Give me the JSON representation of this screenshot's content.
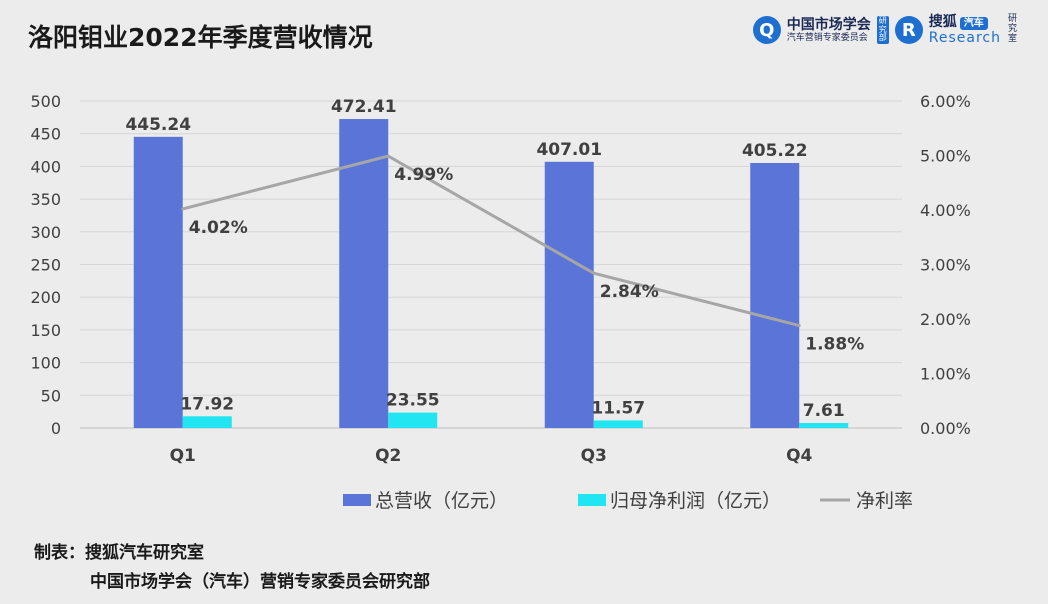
{
  "title": "洛阳钼业2022年季度营收情况",
  "logo": {
    "org1_line1": "中国市场学会",
    "org1_line2": "汽车营销专家委员会",
    "org1_vertical": "研究部",
    "org2_name": "搜狐",
    "org2_badge": "汽车",
    "org2_research": "Research",
    "org2_vertical": "研究室"
  },
  "footer": {
    "line1": "制表：搜狐汽车研究室",
    "line2": "中国市场学会（汽车）营销专家委员会研究部"
  },
  "chart_data": {
    "type": "bar",
    "categories": [
      "Q1",
      "Q2",
      "Q3",
      "Q4"
    ],
    "series": [
      {
        "name": "总营收（亿元）",
        "type": "bar",
        "axis": "left",
        "color": "#5b74d8",
        "values": [
          445.24,
          472.41,
          407.01,
          405.22
        ],
        "labels": [
          "445.24",
          "472.41",
          "407.01",
          "405.22"
        ]
      },
      {
        "name": "归母净利润（亿元）",
        "type": "bar",
        "axis": "left",
        "color": "#22e5f2",
        "values": [
          17.92,
          23.55,
          11.57,
          7.61
        ],
        "labels": [
          "17.92",
          "23.55",
          "11.57",
          "7.61"
        ]
      },
      {
        "name": "净利率",
        "type": "line",
        "axis": "right",
        "color": "#a6a6a6",
        "values": [
          4.02,
          4.99,
          2.84,
          1.88
        ],
        "labels": [
          "4.02%",
          "4.99%",
          "2.84%",
          "1.88%"
        ]
      }
    ],
    "ylim": [
      0,
      500
    ],
    "yticks": [
      "0",
      "50",
      "100",
      "150",
      "200",
      "250",
      "300",
      "350",
      "400",
      "450",
      "500"
    ],
    "y2lim": [
      0,
      6
    ],
    "y2ticks": [
      "0.00%",
      "1.00%",
      "2.00%",
      "3.00%",
      "4.00%",
      "5.00%",
      "6.00%"
    ],
    "grid": true,
    "legend": "bottom"
  }
}
